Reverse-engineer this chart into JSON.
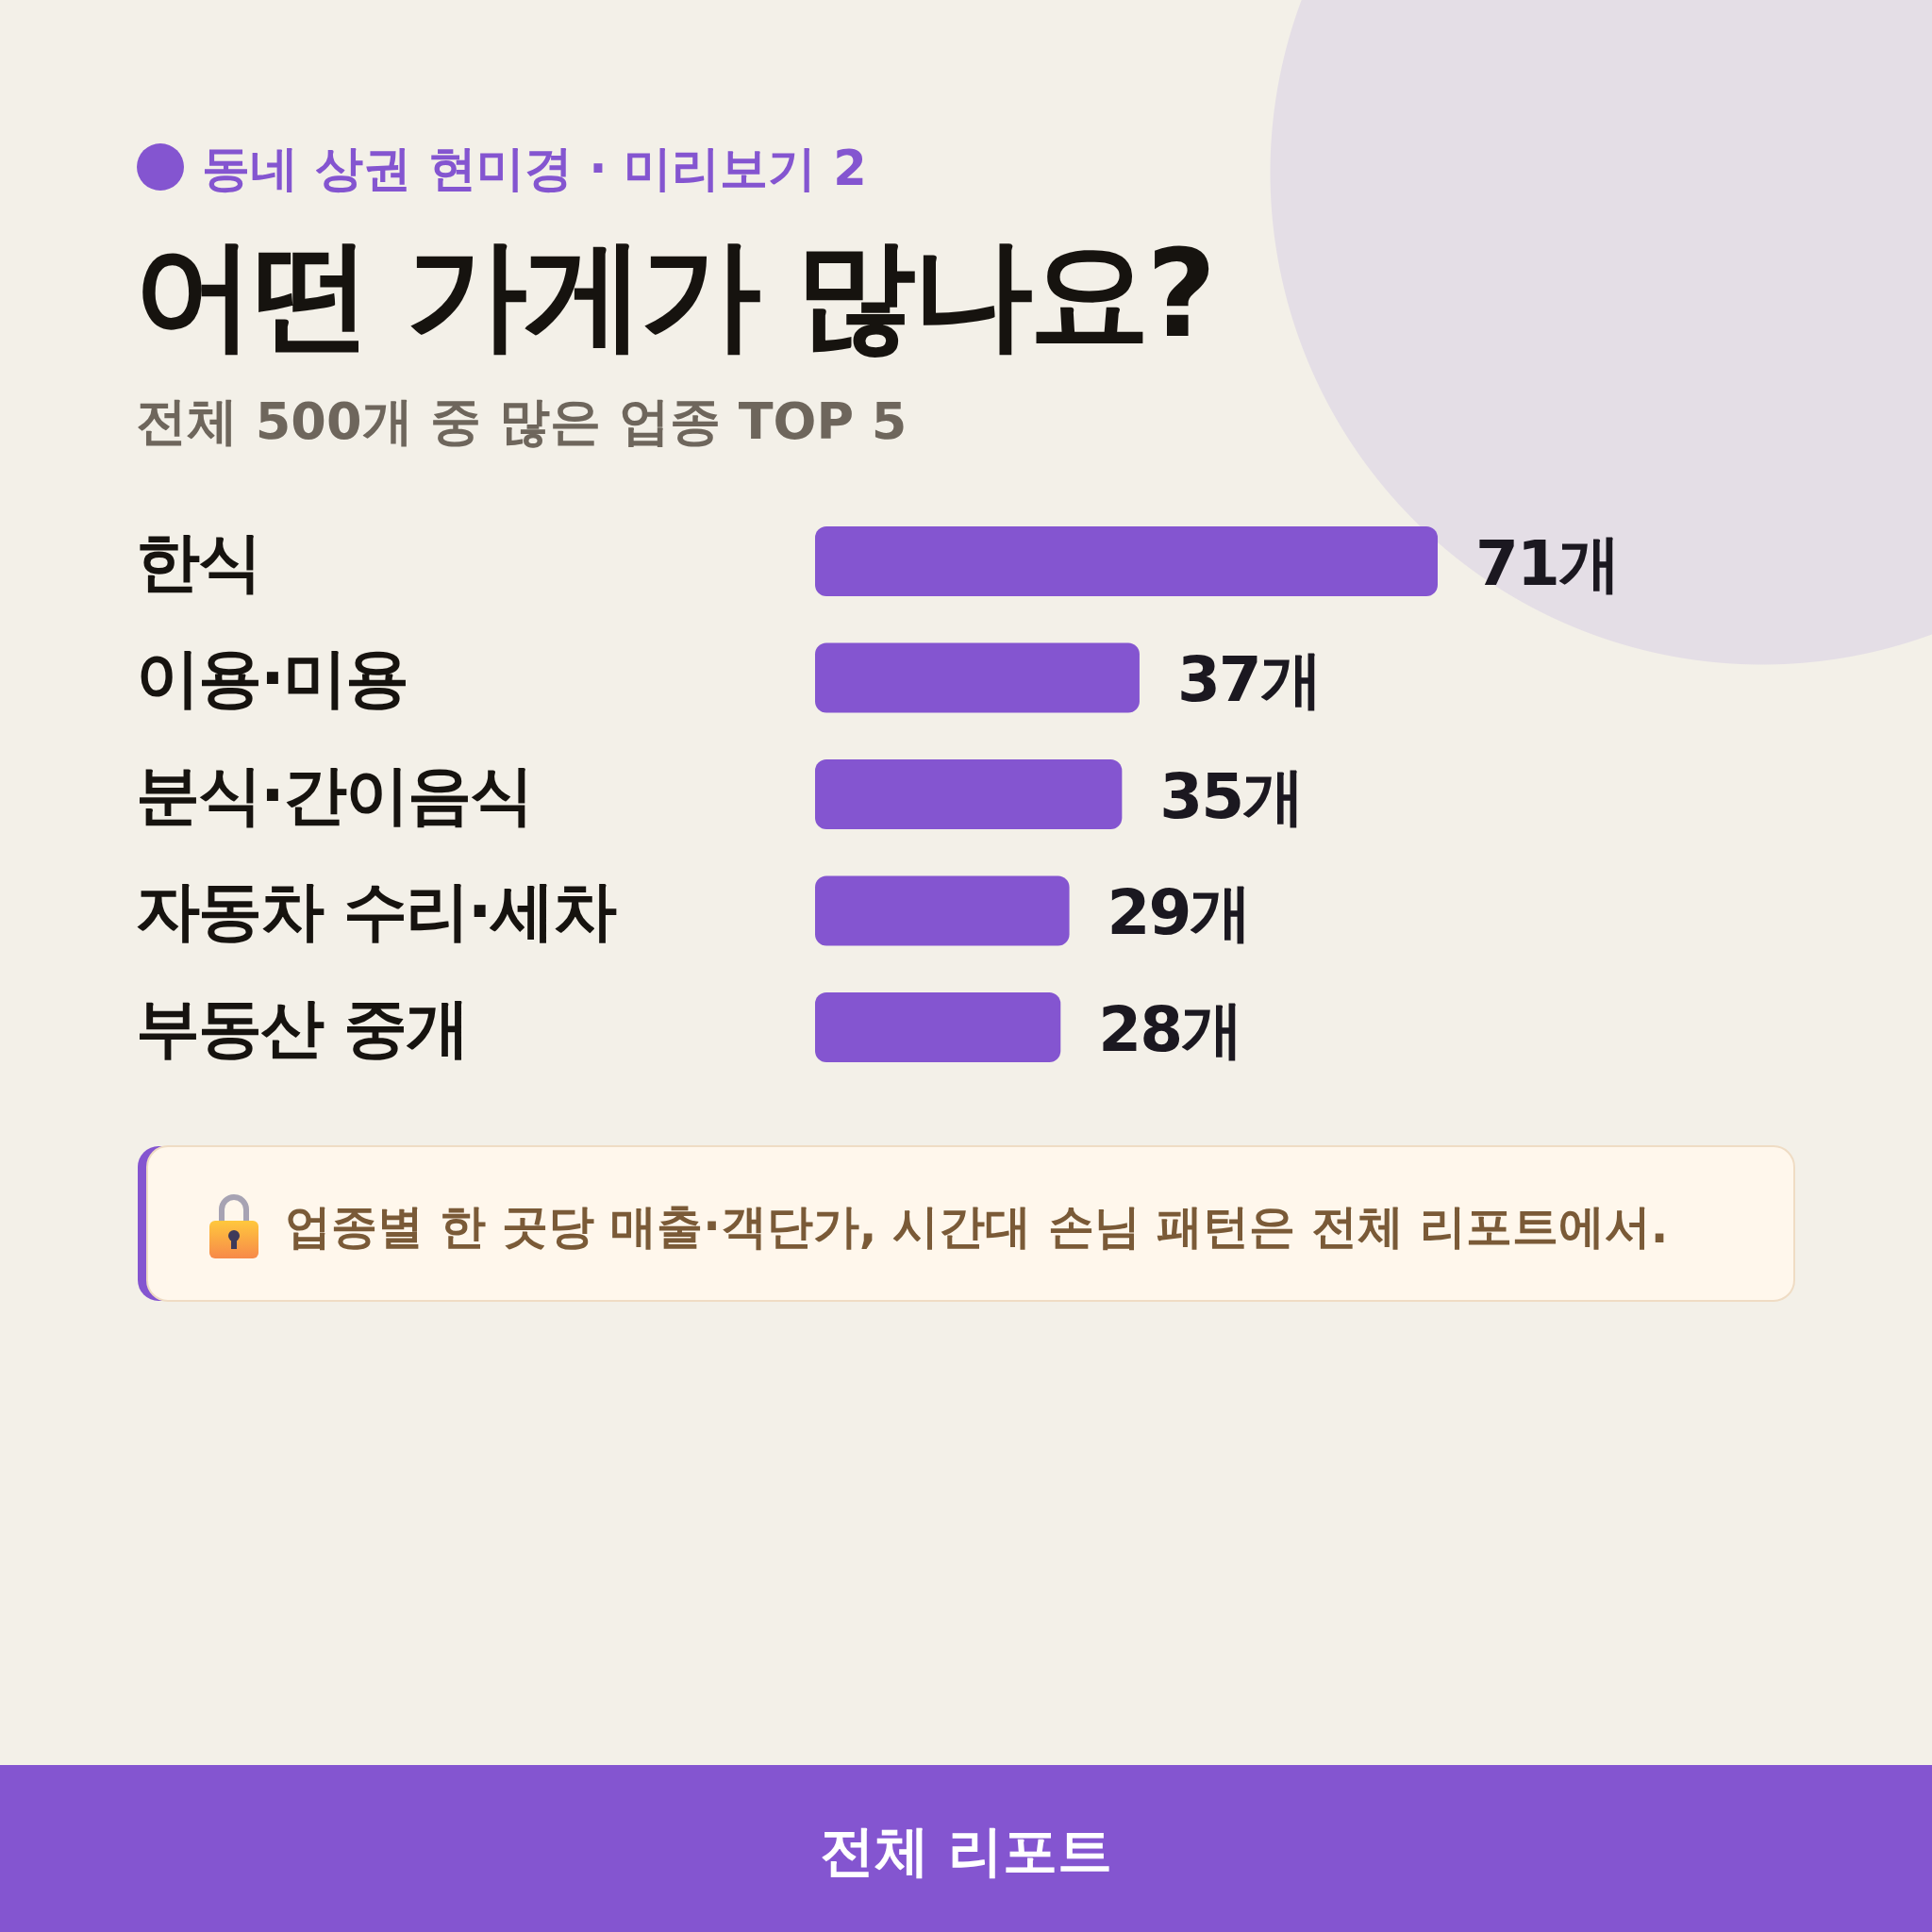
{
  "chart_data": {
    "type": "bar",
    "orientation": "horizontal",
    "title": "어떤 가게가 많나요?",
    "subtitle": "전체 500개 중 많은 업종 TOP 5",
    "categories": [
      "한식",
      "이용·미용",
      "분식·간이음식",
      "자동차 수리·세차",
      "부동산 중개"
    ],
    "values": [
      71,
      37,
      35,
      29,
      28
    ],
    "value_labels": [
      "71개",
      "37개",
      "35개",
      "29개",
      "28개"
    ],
    "color": "#8455d0",
    "annotations": [
      "동네 상권 현미경 · 미리보기 2",
      "업종별 한 곳당 매출·객단가, 시간대 손님 패턴은 전체 리포트에서.",
      "전체 리포트"
    ]
  }
}
